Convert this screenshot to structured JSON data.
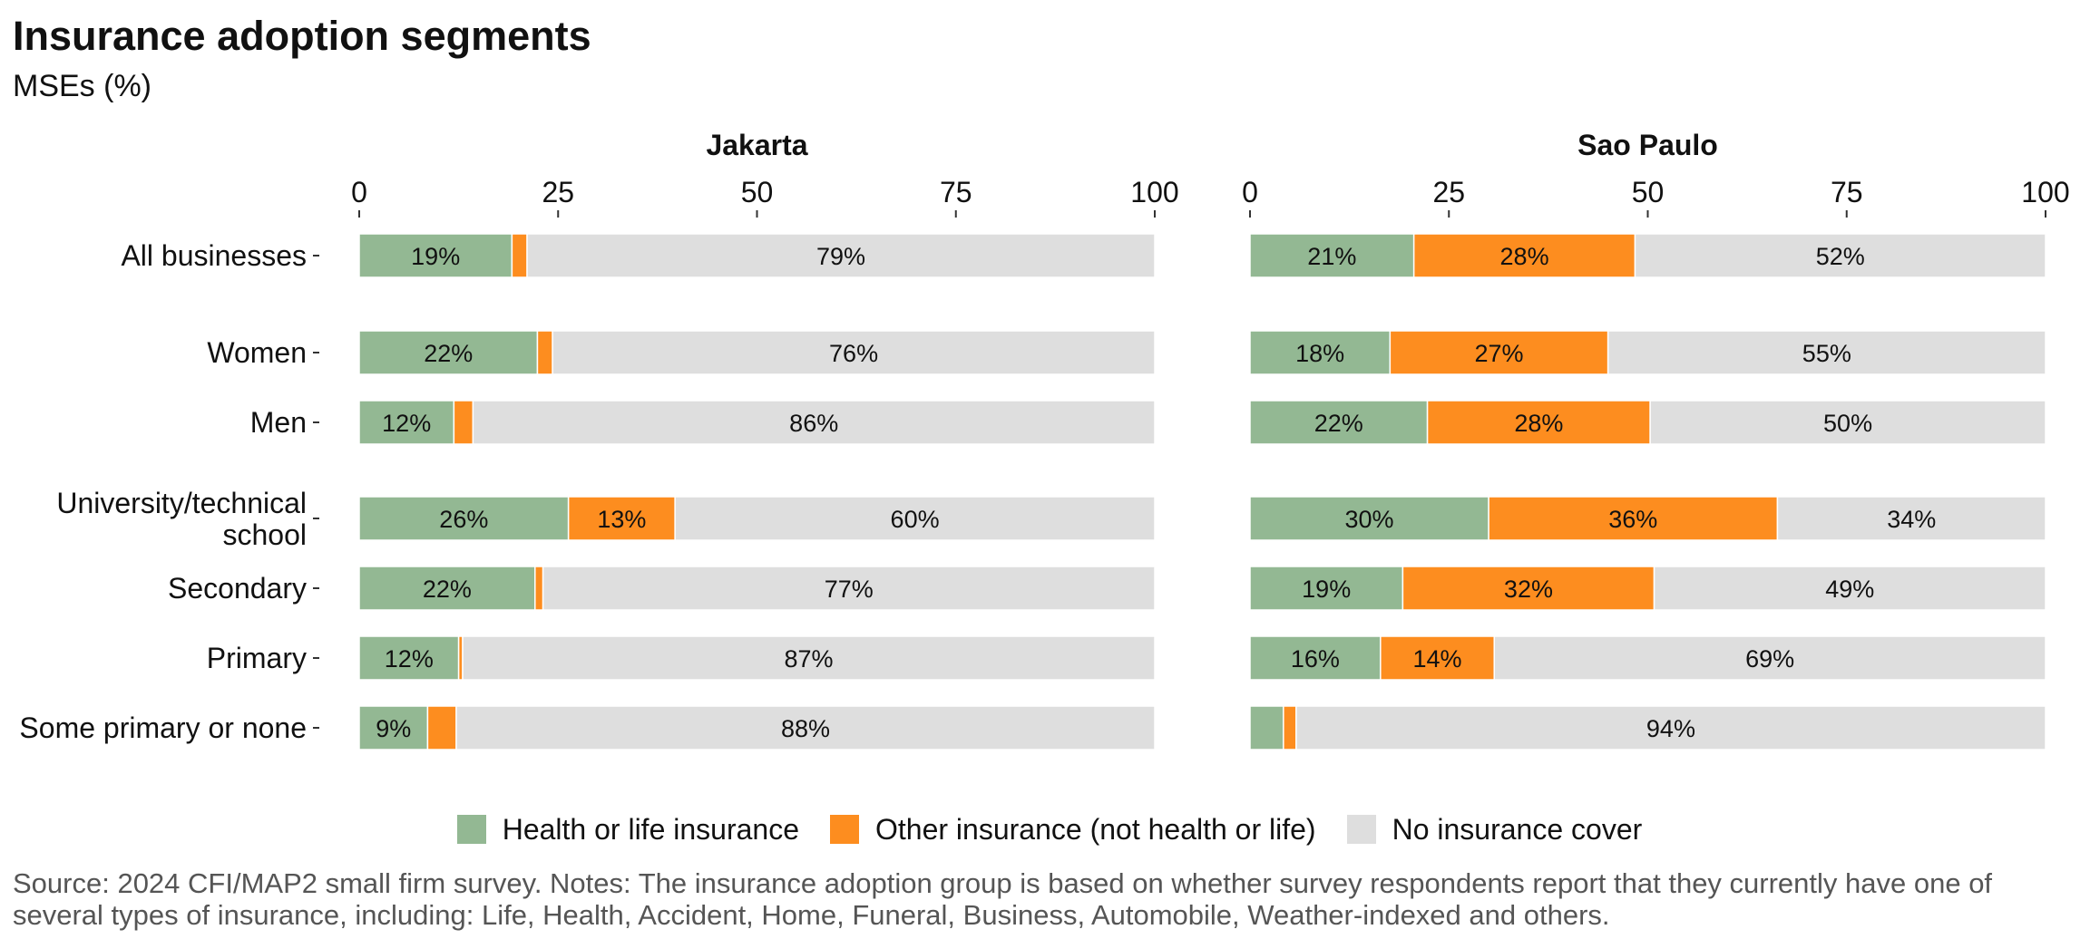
{
  "title": "Insurance adoption segments",
  "subtitle": "MSEs (%)",
  "colors": {
    "health": "#93b893",
    "other": "#fd8d1f",
    "none": "#dedede"
  },
  "legend": [
    {
      "key": "health",
      "label": "Health or life insurance"
    },
    {
      "key": "other",
      "label": "Other insurance (not health or life)"
    },
    {
      "key": "none",
      "label": "No insurance cover"
    }
  ],
  "source": "Source: 2024 CFI/MAP2 small firm survey. Notes: The insurance adoption group is based on whether survey respondents report that they currently have one of several types of insurance, including: Life, Health, Accident, Home, Funeral, Business, Automobile, Weather-indexed and others.",
  "chart_data": {
    "type": "bar",
    "orientation": "horizontal",
    "stacked": true,
    "xlim": [
      0,
      100
    ],
    "xticks": [
      0,
      25,
      50,
      75,
      100
    ],
    "categories": [
      "All businesses",
      "Women",
      "Men",
      "University/technical school",
      "Secondary",
      "Primary",
      "Some primary or none"
    ],
    "category_lines": [
      [
        "All businesses"
      ],
      [
        "Women"
      ],
      [
        "Men"
      ],
      [
        "University/technical",
        "school"
      ],
      [
        "Secondary"
      ],
      [
        "Primary"
      ],
      [
        "Some primary or none"
      ]
    ],
    "series_names": [
      "Health or life insurance",
      "Other insurance (not health or life)",
      "No insurance cover"
    ],
    "panels": [
      {
        "title": "Jakarta",
        "series": [
          {
            "name": "Health or life insurance",
            "values": [
              19.2,
              22.4,
              11.9,
              26.3,
              22.1,
              12.5,
              8.6
            ]
          },
          {
            "name": "Other insurance (not health or life)",
            "values": [
              1.9,
              1.9,
              2.4,
              13.4,
              1.0,
              0.5,
              3.6
            ]
          },
          {
            "name": "No insurance cover",
            "values": [
              78.9,
              75.7,
              85.7,
              60.3,
              76.9,
              87.0,
              87.8
            ]
          }
        ],
        "labels": [
          [
            "19%",
            "",
            "79%"
          ],
          [
            "22%",
            "",
            "76%"
          ],
          [
            "12%",
            "",
            "86%"
          ],
          [
            "26%",
            "13%",
            "60%"
          ],
          [
            "22%",
            "",
            "77%"
          ],
          [
            "12%",
            "",
            "87%"
          ],
          [
            "9%",
            "",
            "88%"
          ]
        ]
      },
      {
        "title": "Sao Paulo",
        "series": [
          {
            "name": "Health or life insurance",
            "values": [
              20.6,
              17.6,
              22.3,
              30.0,
              19.2,
              16.4,
              4.2
            ]
          },
          {
            "name": "Other insurance (not health or life)",
            "values": [
              27.8,
              27.4,
              28.0,
              36.3,
              31.6,
              14.3,
              1.6
            ]
          },
          {
            "name": "No insurance cover",
            "values": [
              51.6,
              55.0,
              49.7,
              33.7,
              49.2,
              69.3,
              94.2
            ]
          }
        ],
        "labels": [
          [
            "21%",
            "28%",
            "52%"
          ],
          [
            "18%",
            "27%",
            "55%"
          ],
          [
            "22%",
            "28%",
            "50%"
          ],
          [
            "30%",
            "36%",
            "34%"
          ],
          [
            "19%",
            "32%",
            "49%"
          ],
          [
            "16%",
            "14%",
            "69%"
          ],
          [
            "",
            "",
            "94%"
          ]
        ]
      }
    ]
  }
}
